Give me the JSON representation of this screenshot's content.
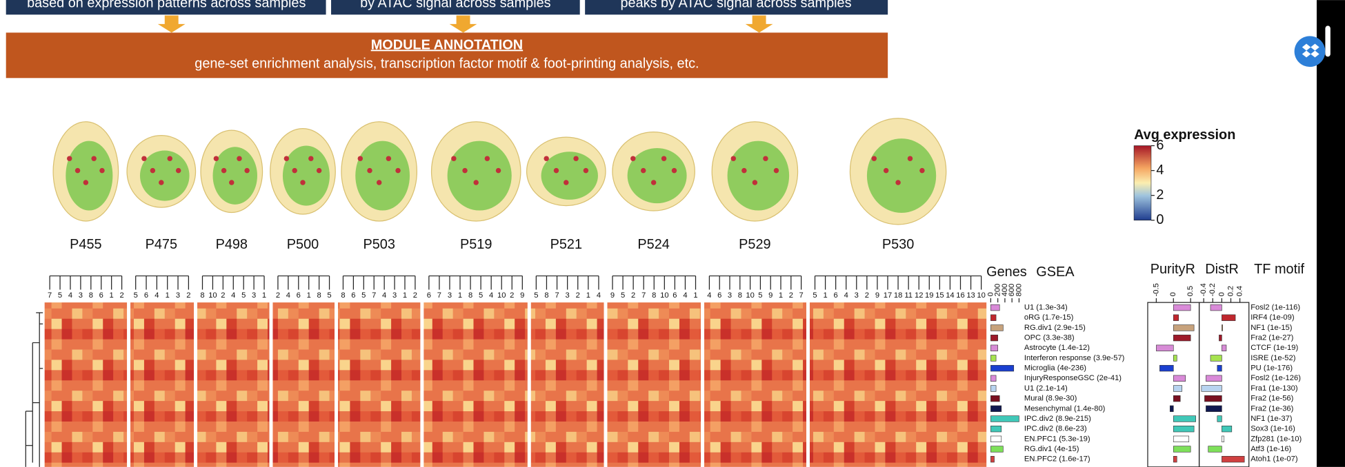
{
  "banner": {
    "boxes": [
      "based on expression patterns across samples",
      "by ATAC signal across samples",
      "peaks by ATAC signal across samples"
    ],
    "title": "MODULE ANNOTATION",
    "subtitle": "gene-set enrichment analysis, transcription factor motif & foot-printing analysis, etc."
  },
  "samples": [
    {
      "name": "P455",
      "leaves": [
        7,
        5,
        4,
        3,
        8,
        6,
        1,
        2
      ]
    },
    {
      "name": "P475",
      "leaves": [
        5,
        6,
        4,
        1,
        3,
        2
      ]
    },
    {
      "name": "P498",
      "leaves": [
        8,
        10,
        2,
        4,
        5,
        3,
        1
      ]
    },
    {
      "name": "P500",
      "leaves": [
        2,
        4,
        6,
        1,
        8,
        5
      ]
    },
    {
      "name": "P503",
      "leaves": [
        8,
        6,
        5,
        7,
        4,
        3,
        1,
        2
      ]
    },
    {
      "name": "P519",
      "leaves": [
        6,
        7,
        3,
        1,
        8,
        5,
        4,
        10,
        2,
        9
      ]
    },
    {
      "name": "P521",
      "leaves": [
        5,
        8,
        7,
        3,
        2,
        1,
        4
      ]
    },
    {
      "name": "P524",
      "leaves": [
        9,
        5,
        2,
        7,
        8,
        10,
        6,
        4,
        1
      ]
    },
    {
      "name": "P529",
      "leaves": [
        4,
        6,
        3,
        8,
        10,
        5,
        9,
        1,
        2,
        7
      ]
    },
    {
      "name": "P530",
      "leaves": [
        5,
        1,
        6,
        4,
        3,
        2,
        9,
        17,
        18,
        11,
        12,
        19,
        15,
        14,
        16,
        13,
        10
      ]
    }
  ],
  "legend": {
    "title": "Avg expression",
    "lim": [
      0,
      6
    ],
    "ticks": [
      0,
      2,
      4,
      6
    ]
  },
  "panels": {
    "genes": {
      "title": "Genes",
      "lim": [
        0,
        800
      ],
      "ticks": [
        0,
        200,
        400,
        600,
        800
      ]
    },
    "gsea": {
      "title": "GSEA"
    },
    "purity": {
      "title": "PurityR",
      "lim": [
        -0.75,
        0.75
      ],
      "ticks": [
        -0.5,
        0,
        0.5
      ]
    },
    "dist": {
      "title": "DistR",
      "lim": [
        -0.5,
        0.6
      ],
      "ticks": [
        -0.4,
        -0.2,
        0,
        0.2,
        0.4
      ]
    },
    "tf": {
      "title": "TF motif"
    }
  },
  "modules": [
    {
      "gsea": "U1 (1.3e-34)",
      "genes": 250,
      "purity": 0.5,
      "dist": -0.25,
      "tf": "Fosl2 (1e-116)",
      "color": "#d98ad8"
    },
    {
      "gsea": "oRG (1.7e-15)",
      "genes": 150,
      "purity": 0.15,
      "dist": 0.3,
      "tf": "IRF4 (1e-09)",
      "color": "#c0272d"
    },
    {
      "gsea": "RG.div1 (2.9e-15)",
      "genes": 350,
      "purity": 0.6,
      "dist": 0.02,
      "tf": "NF1 (1e-15)",
      "color": "#c7a27c"
    },
    {
      "gsea": "OPC (3.3e-38)",
      "genes": 200,
      "purity": 0.5,
      "dist": -0.06,
      "tf": "Fra2 (1e-27)",
      "color": "#9e1a2a"
    },
    {
      "gsea": "Astrocyte (1.4e-12)",
      "genes": 200,
      "purity": -0.5,
      "dist": 0.1,
      "tf": "CTCF (1e-19)",
      "color": "#d78bd6"
    },
    {
      "gsea": "Interferon response (3.9e-57)",
      "genes": 150,
      "purity": 0.1,
      "dist": -0.25,
      "tf": "ISRE (1e-52)",
      "color": "#a6e34f"
    },
    {
      "gsea": "Microglia (4e-236)",
      "genes": 650,
      "purity": -0.4,
      "dist": -0.1,
      "tf": "PU (1e-176)",
      "color": "#1a3fd0"
    },
    {
      "gsea": "InjuryResponseGSC (2e-41)",
      "genes": 150,
      "purity": 0.35,
      "dist": -0.35,
      "tf": "Fosl2 (1e-126)",
      "color": "#d98ad8"
    },
    {
      "gsea": "U1 (2.1e-14)",
      "genes": 150,
      "purity": 0.25,
      "dist": -0.45,
      "tf": "Fra1 (1e-130)",
      "color": "#b8d4f0"
    },
    {
      "gsea": "Mural (8.9e-30)",
      "genes": 250,
      "purity": 0.2,
      "dist": -0.38,
      "tf": "Fra2 (1e-56)",
      "color": "#7a1020"
    },
    {
      "gsea": "Mesenchymal (1.4e-80)",
      "genes": 300,
      "purity": -0.1,
      "dist": -0.35,
      "tf": "Fra2 (1e-36)",
      "color": "#101850"
    },
    {
      "gsea": "IPC.div2 (8.9e-215)",
      "genes": 800,
      "purity": 0.65,
      "dist": -0.1,
      "tf": "NF1 (1e-37)",
      "color": "#40c8b8"
    },
    {
      "gsea": "IPC.div2 (8.6e-23)",
      "genes": 300,
      "purity": 0.6,
      "dist": 0.22,
      "tf": "Sox3 (1e-16)",
      "color": "#40c8b8"
    },
    {
      "gsea": "EN.PFC1 (5.3e-19)",
      "genes": 300,
      "purity": 0.45,
      "dist": 0.05,
      "tf": "Zfp281 (1e-10)",
      "color": "#ffffff"
    },
    {
      "gsea": "RG.div1 (4e-15)",
      "genes": 350,
      "purity": 0.5,
      "dist": -0.3,
      "tf": "Atf3 (1e-16)",
      "color": "#7ee05a"
    },
    {
      "gsea": "EN.PFC2 (1.6e-17)",
      "genes": 100,
      "purity": 0.1,
      "dist": 0.5,
      "tf": "Atoh1 (1e-07)",
      "color": "#d04040"
    }
  ]
}
